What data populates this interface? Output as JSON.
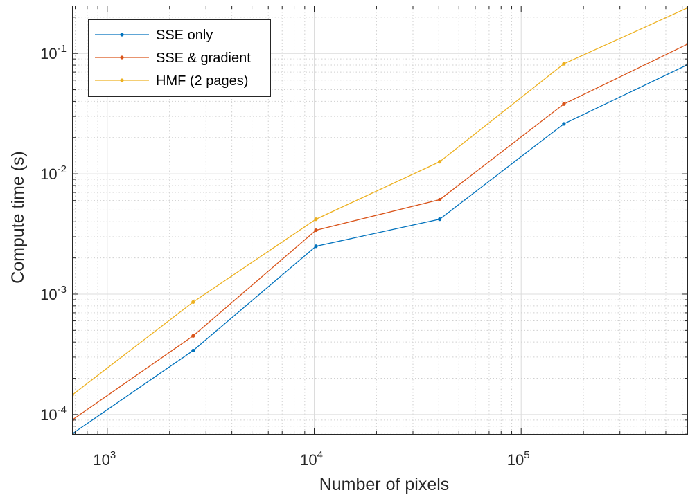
{
  "chart_data": {
    "type": "line",
    "xscale": "log",
    "yscale": "log",
    "xlabel": "Number of pixels",
    "ylabel": "Compute time (s)",
    "xlim": [
      676,
      640000
    ],
    "ylim": [
      6.8e-05,
      0.25
    ],
    "grid": true,
    "legend_position": "top-left",
    "x": [
      676,
      2601,
      10201,
      40401,
      160801,
      640000
    ],
    "x_ticks": [
      {
        "value": 1000,
        "base": "10",
        "exp": "3"
      },
      {
        "value": 10000,
        "base": "10",
        "exp": "4"
      },
      {
        "value": 100000,
        "base": "10",
        "exp": "5"
      }
    ],
    "y_ticks": [
      {
        "value": 0.0001,
        "base": "10",
        "exp": "-4"
      },
      {
        "value": 0.001,
        "base": "10",
        "exp": "-3"
      },
      {
        "value": 0.01,
        "base": "10",
        "exp": "-2"
      },
      {
        "value": 0.1,
        "base": "10",
        "exp": "-1"
      }
    ],
    "series": [
      {
        "name": "SSE only",
        "color": "#0072BD",
        "values": [
          6.9e-05,
          0.00034,
          0.0025,
          0.0042,
          0.026,
          0.081
        ]
      },
      {
        "name": "SSE & gradient",
        "color": "#D95319",
        "values": [
          9e-05,
          0.00045,
          0.0034,
          0.0061,
          0.038,
          0.12
        ]
      },
      {
        "name": "HMF (2 pages)",
        "color": "#EDB120",
        "values": [
          0.000145,
          0.00086,
          0.0042,
          0.0126,
          0.082,
          0.24
        ]
      }
    ]
  }
}
